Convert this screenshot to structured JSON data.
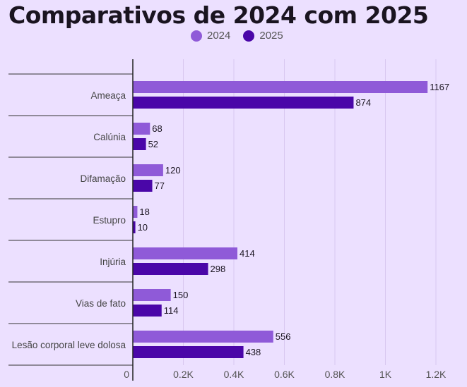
{
  "title": "Comparativos de 2024 com 2025",
  "chart_data": {
    "type": "bar",
    "orientation": "horizontal",
    "categories": [
      "Ameaça",
      "Calúnia",
      "Difamação",
      "Estupro",
      "Injúria",
      "Vias de fato",
      "Lesão corporal leve dolosa"
    ],
    "series": [
      {
        "name": "2024",
        "color": "#8f5ad8",
        "values": [
          1167,
          68,
          120,
          18,
          414,
          150,
          556
        ]
      },
      {
        "name": "2025",
        "color": "#4a06a8",
        "values": [
          874,
          52,
          77,
          10,
          298,
          114,
          438
        ]
      }
    ],
    "xlim": [
      0,
      1300
    ],
    "x_ticks": [
      {
        "value": 0,
        "label": "0"
      },
      {
        "value": 200,
        "label": "0.2K"
      },
      {
        "value": 400,
        "label": "0.4K"
      },
      {
        "value": 600,
        "label": "0.6K"
      },
      {
        "value": 800,
        "label": "0.8K"
      },
      {
        "value": 1000,
        "label": "1K"
      },
      {
        "value": 1200,
        "label": "1.2K"
      }
    ],
    "grid": true,
    "legend_position": "top-center"
  }
}
